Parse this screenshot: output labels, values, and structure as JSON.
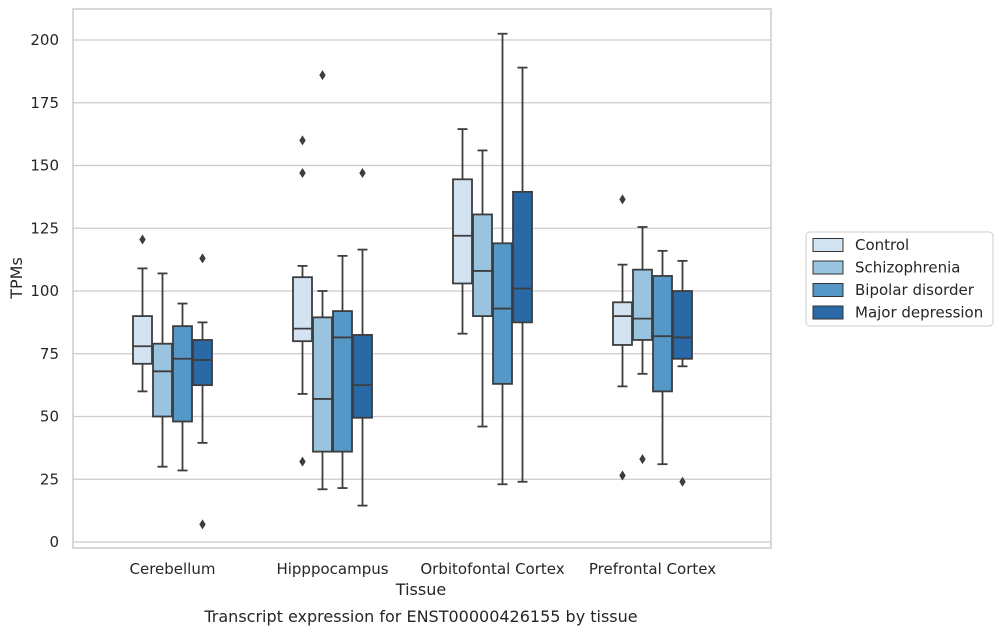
{
  "chart_data": {
    "type": "boxplot",
    "title": "",
    "caption": "Transcript expression for ENST00000426155 by tissue",
    "xlabel": "Tissue",
    "ylabel": "TPMs",
    "ylim": [
      -2,
      213
    ],
    "yticks": [
      0,
      25,
      50,
      75,
      100,
      125,
      150,
      175,
      200
    ],
    "grid": "horizontal",
    "legend_position": "right",
    "categories": [
      "Cerebellum",
      "Hipppocampus",
      "Orbitofontal Cortex",
      "Prefrontal Cortex"
    ],
    "series": [
      {
        "name": "Control",
        "color": "#d3e3f1",
        "boxes": [
          {
            "whislo": 60,
            "q1": 71,
            "med": 78,
            "q3": 90,
            "whishi": 109,
            "fliers": [
              120.5
            ]
          },
          {
            "whislo": 59,
            "q1": 80,
            "med": 85,
            "q3": 105.5,
            "whishi": 110,
            "fliers": [
              160,
              147,
              32
            ]
          },
          {
            "whislo": 83,
            "q1": 103,
            "med": 122,
            "q3": 144.5,
            "whishi": 164.5,
            "fliers": []
          },
          {
            "whislo": 62,
            "q1": 78.5,
            "med": 90,
            "q3": 95.5,
            "whishi": 110.5,
            "fliers": [
              136.5,
              26.5
            ]
          }
        ]
      },
      {
        "name": "Schizophrenia",
        "color": "#9ac3df",
        "boxes": [
          {
            "whislo": 30,
            "q1": 50,
            "med": 68,
            "q3": 79,
            "whishi": 107,
            "fliers": []
          },
          {
            "whislo": 21,
            "q1": 36,
            "med": 57,
            "q3": 89.5,
            "whishi": 100,
            "fliers": [
              186
            ]
          },
          {
            "whislo": 46,
            "q1": 90,
            "med": 108,
            "q3": 130.5,
            "whishi": 156,
            "fliers": []
          },
          {
            "whislo": 67,
            "q1": 80.5,
            "med": 89,
            "q3": 108.5,
            "whishi": 125.5,
            "fliers": [
              33
            ]
          }
        ]
      },
      {
        "name": "Bipolar disorder",
        "color": "#5597c6",
        "boxes": [
          {
            "whislo": 28.5,
            "q1": 48,
            "med": 73,
            "q3": 86,
            "whishi": 95,
            "fliers": []
          },
          {
            "whislo": 21.5,
            "q1": 36,
            "med": 81.5,
            "q3": 92,
            "whishi": 114,
            "fliers": []
          },
          {
            "whislo": 23,
            "q1": 63,
            "med": 93,
            "q3": 119,
            "whishi": 202.5,
            "fliers": []
          },
          {
            "whislo": 31,
            "q1": 60,
            "med": 82,
            "q3": 106,
            "whishi": 116,
            "fliers": []
          }
        ]
      },
      {
        "name": "Major depression",
        "color": "#2a69a8",
        "boxes": [
          {
            "whislo": 39.5,
            "q1": 62.5,
            "med": 72.5,
            "q3": 80.5,
            "whishi": 87.5,
            "fliers": [
              113,
              7
            ]
          },
          {
            "whislo": 14.5,
            "q1": 49.5,
            "med": 62.5,
            "q3": 82.5,
            "whishi": 116.5,
            "fliers": [
              147
            ]
          },
          {
            "whislo": 24,
            "q1": 87.5,
            "med": 101,
            "q3": 139.5,
            "whishi": 189,
            "fliers": []
          },
          {
            "whislo": 70,
            "q1": 73,
            "med": 81.5,
            "q3": 100,
            "whishi": 112,
            "fliers": [
              24
            ]
          }
        ]
      }
    ]
  }
}
